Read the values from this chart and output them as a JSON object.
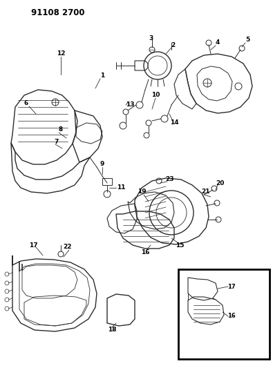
{
  "title": "91108 2700",
  "bg_color": "#ffffff",
  "line_color": "#2a2a2a",
  "label_color": "#000000",
  "figsize": [
    3.95,
    5.33
  ],
  "dpi": 100
}
